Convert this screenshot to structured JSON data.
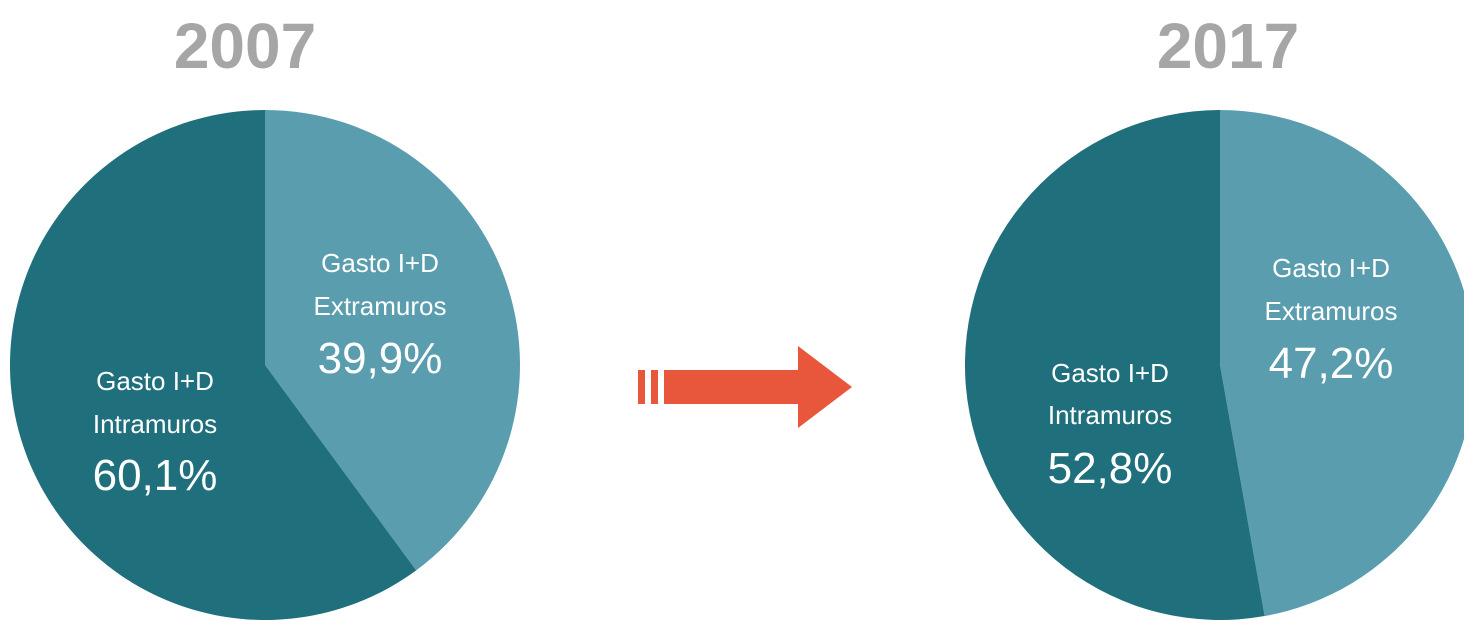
{
  "colors": {
    "intramuros": "#1F6F7C",
    "extramuros": "#5A9DAE",
    "label_text": "#FFFFFF",
    "year_text": "#A6A6A6",
    "arrow": "#E8563B"
  },
  "chart_data": [
    {
      "type": "pie",
      "title": "2007",
      "slices": [
        {
          "label_line1": "Gasto I+D",
          "label_line2": "Extramuros",
          "value": 39.9,
          "value_text": "39,9%"
        },
        {
          "label_line1": "Gasto I+D",
          "label_line2": "Intramuros",
          "value": 60.1,
          "value_text": "60,1%"
        }
      ]
    },
    {
      "type": "pie",
      "title": "2017",
      "slices": [
        {
          "label_line1": "Gasto I+D",
          "label_line2": "Extramuros",
          "value": 47.2,
          "value_text": "47,2%"
        },
        {
          "label_line1": "Gasto I+D",
          "label_line2": "Intramuros",
          "value": 52.8,
          "value_text": "52,8%"
        }
      ]
    }
  ]
}
